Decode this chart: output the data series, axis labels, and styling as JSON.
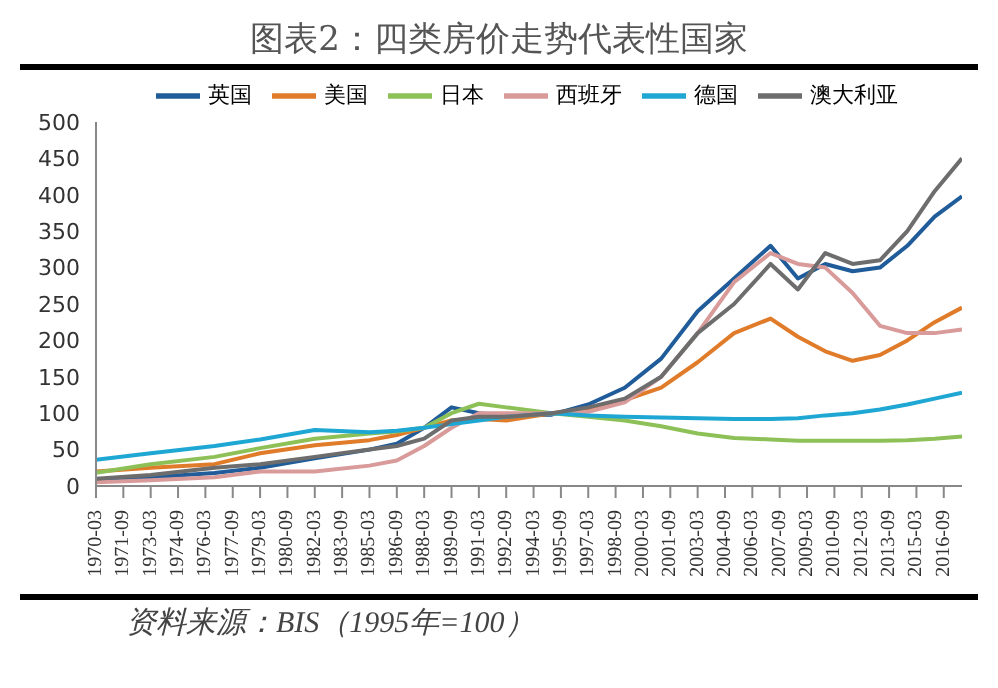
{
  "chart_data": {
    "type": "line",
    "title": "图表2：四类房价走势代表性国家",
    "annotations": [
      "资料来源：BIS（1995年=100）"
    ],
    "x": [
      "1970-03",
      "1973-03",
      "1976-09",
      "1979-03",
      "1982-03",
      "1985-03",
      "1986-09",
      "1988-03",
      "1989-09",
      "1991-03",
      "1992-09",
      "1995-03",
      "1997-03",
      "1999-03",
      "2001-03",
      "2003-03",
      "2005-03",
      "2007-03",
      "2008-09",
      "2010-03",
      "2011-09",
      "2013-03",
      "2014-09",
      "2016-03",
      "2017-09"
    ],
    "series": [
      {
        "name": "英国",
        "color": "#1f5c99",
        "values": [
          8,
          12,
          18,
          25,
          38,
          50,
          58,
          80,
          108,
          100,
          97,
          98,
          112,
          135,
          175,
          240,
          285,
          330,
          285,
          305,
          295,
          300,
          330,
          370,
          398
        ]
      },
      {
        "name": "美国",
        "color": "#e07b2a",
        "values": [
          20,
          25,
          30,
          45,
          56,
          63,
          70,
          80,
          90,
          92,
          90,
          100,
          105,
          118,
          135,
          170,
          210,
          230,
          205,
          185,
          172,
          180,
          200,
          225,
          245
        ]
      },
      {
        "name": "日本",
        "color": "#8dc158",
        "values": [
          18,
          30,
          40,
          52,
          65,
          72,
          75,
          80,
          100,
          113,
          108,
          100,
          95,
          90,
          82,
          72,
          66,
          64,
          62,
          62,
          62,
          62,
          63,
          65,
          68
        ]
      },
      {
        "name": "西班牙",
        "color": "#d99a9a",
        "values": [
          5,
          8,
          12,
          20,
          20,
          28,
          35,
          55,
          80,
          100,
          100,
          100,
          102,
          115,
          150,
          210,
          280,
          320,
          305,
          300,
          265,
          220,
          210,
          210,
          215
        ]
      },
      {
        "name": "德国",
        "color": "#1fa7d4",
        "values": [
          36,
          45,
          55,
          64,
          77,
          74,
          76,
          80,
          85,
          90,
          95,
          100,
          97,
          95,
          94,
          93,
          92,
          92,
          93,
          97,
          100,
          105,
          112,
          120,
          128
        ]
      },
      {
        "name": "澳大利亚",
        "color": "#6d6d6d",
        "values": [
          10,
          15,
          25,
          30,
          40,
          50,
          55,
          65,
          90,
          95,
          95,
          100,
          108,
          120,
          150,
          210,
          250,
          305,
          270,
          320,
          305,
          310,
          350,
          405,
          450
        ]
      }
    ],
    "xlim": [
      "1970-03",
      "2017-09"
    ],
    "xticks": [
      "1970-03",
      "1971-09",
      "1973-03",
      "1974-09",
      "1976-03",
      "1977-09",
      "1979-03",
      "1980-09",
      "1982-03",
      "1983-09",
      "1985-03",
      "1986-09",
      "1988-03",
      "1989-09",
      "1991-03",
      "1992-09",
      "1994-03",
      "1995-09",
      "1997-03",
      "1998-09",
      "2000-03",
      "2001-09",
      "2003-03",
      "2004-09",
      "2006-03",
      "2007-09",
      "2009-03",
      "2010-09",
      "2012-03",
      "2013-09",
      "2015-03",
      "2016-09"
    ],
    "ylim": [
      0,
      500
    ],
    "yticks": [
      0,
      50,
      100,
      150,
      200,
      250,
      300,
      350,
      400,
      450,
      500
    ],
    "grid": false,
    "legend": "top",
    "marker": "none",
    "line_style": "solid"
  }
}
